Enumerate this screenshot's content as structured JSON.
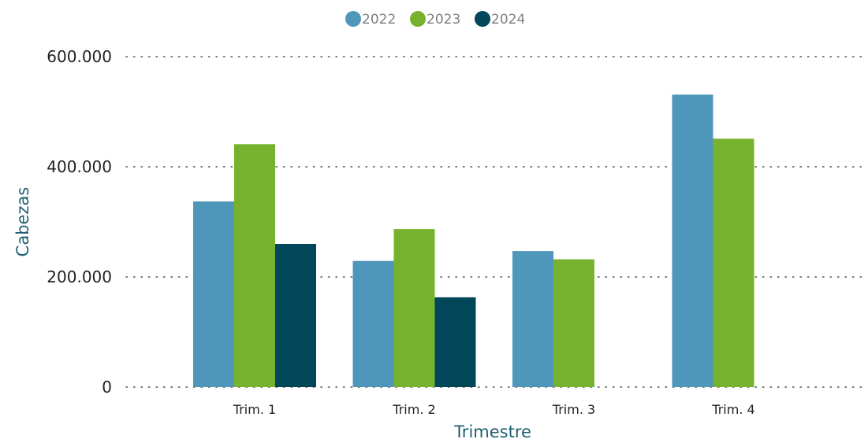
{
  "chart_data": {
    "type": "bar",
    "categories": [
      "Trim. 1",
      "Trim. 2",
      "Trim. 3",
      "Trim. 4"
    ],
    "series": [
      {
        "name": "2022",
        "color": "#4e96ba",
        "values": [
          337000,
          229000,
          247000,
          531000
        ]
      },
      {
        "name": "2023",
        "color": "#76b22d",
        "values": [
          441000,
          287000,
          232000,
          451000
        ]
      },
      {
        "name": "2024",
        "color": "#02465a",
        "values": [
          260000,
          163000,
          null,
          null
        ]
      }
    ],
    "xlabel": "Trimestre",
    "ylabel": "Cabezas",
    "ylim": [
      0,
      600000
    ],
    "yticks": [
      0,
      200000,
      400000,
      600000
    ],
    "ytick_labels": [
      "0",
      "200.000",
      "400.000",
      "600.000"
    ],
    "grid": "dotted horizontal",
    "legend_position": "top-center"
  }
}
